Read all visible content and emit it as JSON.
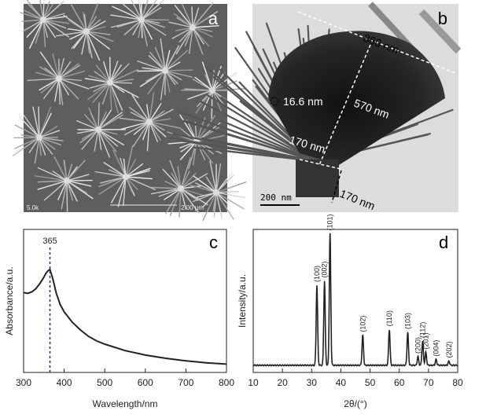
{
  "panels": {
    "a": {
      "letter": "a",
      "scale_text": "2.00 µm",
      "corner_text": "5.0k"
    },
    "b": {
      "letter": "b",
      "measurements": [
        "860 nm",
        "570 nm",
        "16.6 nm",
        "170 nm",
        "170 nm"
      ],
      "scale_bar_label": "200 nm"
    },
    "c": {
      "letter": "c"
    },
    "d": {
      "letter": "d"
    }
  },
  "chart_data": [
    {
      "panel": "c",
      "type": "line",
      "xlabel": "Wavelength/nm",
      "ylabel": "Absorbance/a.u.",
      "xlim": [
        300,
        800
      ],
      "xticks": [
        300,
        400,
        500,
        600,
        700,
        800
      ],
      "annotation": {
        "x": 365,
        "label": "365"
      },
      "series": [
        {
          "x": [
            300,
            310,
            320,
            330,
            340,
            350,
            355,
            360,
            365,
            370,
            375,
            380,
            390,
            400,
            420,
            440,
            460,
            480,
            500,
            550,
            600,
            650,
            700,
            750,
            800
          ],
          "y": [
            0.62,
            0.615,
            0.625,
            0.65,
            0.69,
            0.74,
            0.77,
            0.79,
            0.8,
            0.75,
            0.69,
            0.62,
            0.53,
            0.47,
            0.39,
            0.33,
            0.28,
            0.245,
            0.22,
            0.17,
            0.135,
            0.11,
            0.09,
            0.075,
            0.065
          ]
        }
      ],
      "grid": false
    },
    {
      "panel": "d",
      "type": "line",
      "xlabel": "2θ/(°)",
      "ylabel": "Intensity/a.u.",
      "xlim": [
        10,
        80
      ],
      "xticks": [
        10,
        20,
        30,
        40,
        50,
        60,
        70,
        80
      ],
      "peaks": [
        {
          "x": 31.8,
          "height": 0.56,
          "label": "(100)"
        },
        {
          "x": 34.4,
          "height": 0.59,
          "label": "(002)"
        },
        {
          "x": 36.3,
          "height": 0.92,
          "label": "(101)"
        },
        {
          "x": 47.5,
          "height": 0.21,
          "label": "(102)"
        },
        {
          "x": 56.6,
          "height": 0.25,
          "label": "(110)"
        },
        {
          "x": 62.9,
          "height": 0.23,
          "label": "(103)"
        },
        {
          "x": 66.4,
          "height": 0.06,
          "label": "(200)"
        },
        {
          "x": 68.0,
          "height": 0.17,
          "label": "(112)"
        },
        {
          "x": 69.1,
          "height": 0.09,
          "label": "(201)"
        },
        {
          "x": 72.6,
          "height": 0.04,
          "label": "(004)"
        },
        {
          "x": 77.0,
          "height": 0.03,
          "label": "(202)"
        }
      ],
      "baseline": 0.05,
      "grid": false
    }
  ]
}
